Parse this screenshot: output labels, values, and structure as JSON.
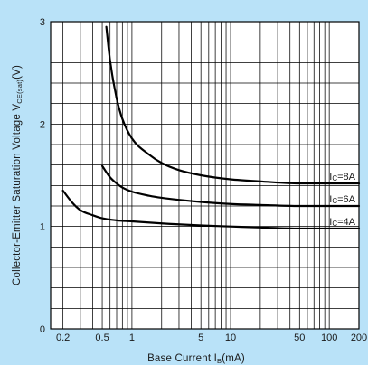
{
  "chart_data": {
    "type": "line",
    "xlabel_main": "Base Current I",
    "xlabel_sub": "B",
    "xlabel_unit": "(mA)",
    "ylabel_main": "Collector-Emitter Saturation Voltage V",
    "ylabel_sub": "CE(sat)",
    "ylabel_unit": "(V)",
    "x_scale": "log",
    "xlim": [
      0.15,
      200
    ],
    "ylim": [
      0,
      3
    ],
    "grid": true,
    "x_tick_labels": [
      {
        "value": 0.2,
        "label": "0.2"
      },
      {
        "value": 0.5,
        "label": "0.5"
      },
      {
        "value": 1,
        "label": "1"
      },
      {
        "value": 5,
        "label": "5"
      },
      {
        "value": 10,
        "label": "10"
      },
      {
        "value": 50,
        "label": "50"
      },
      {
        "value": 100,
        "label": "100"
      },
      {
        "value": 200,
        "label": "200"
      }
    ],
    "y_tick_labels": [
      {
        "value": 0,
        "label": "0"
      },
      {
        "value": 1,
        "label": "1"
      },
      {
        "value": 2,
        "label": "2"
      },
      {
        "value": 3,
        "label": "3"
      }
    ],
    "series": [
      {
        "label_main": "I",
        "label_sub": "C",
        "label_value": "=8A",
        "x": [
          0.55,
          0.6,
          0.7,
          0.8,
          1,
          1.5,
          2,
          3,
          5,
          10,
          20,
          50,
          100,
          200
        ],
        "y": [
          2.95,
          2.62,
          2.25,
          2.05,
          1.86,
          1.7,
          1.62,
          1.55,
          1.5,
          1.46,
          1.44,
          1.42,
          1.42,
          1.42
        ]
      },
      {
        "label_main": "I",
        "label_sub": "C",
        "label_value": "=6A",
        "x": [
          0.5,
          0.6,
          0.7,
          0.8,
          1,
          1.5,
          2,
          3,
          5,
          10,
          20,
          50,
          100,
          200
        ],
        "y": [
          1.59,
          1.48,
          1.42,
          1.38,
          1.34,
          1.3,
          1.28,
          1.26,
          1.24,
          1.22,
          1.21,
          1.2,
          1.2,
          1.2
        ]
      },
      {
        "label_main": "I",
        "label_sub": "C",
        "label_value": "=4A",
        "x": [
          0.2,
          0.25,
          0.3,
          0.4,
          0.5,
          0.7,
          1,
          2,
          5,
          10,
          20,
          50,
          100,
          200
        ],
        "y": [
          1.35,
          1.23,
          1.16,
          1.11,
          1.08,
          1.06,
          1.05,
          1.03,
          1.01,
          1.0,
          0.99,
          0.98,
          0.98,
          0.98
        ]
      }
    ]
  }
}
